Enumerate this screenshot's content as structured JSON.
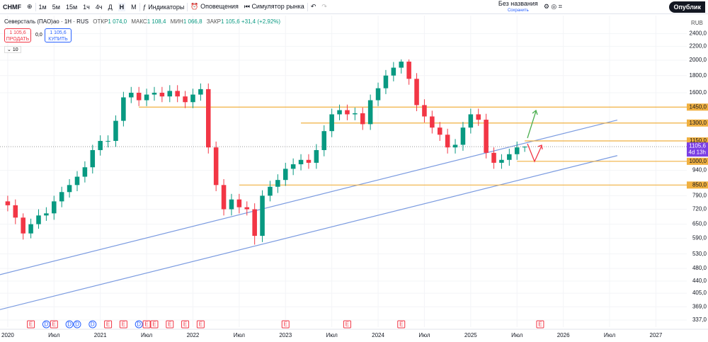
{
  "toolbar": {
    "symbol": "CHMF",
    "intervals": [
      "1м",
      "5м",
      "15м",
      "1ч",
      "4ч",
      "Д",
      "Н",
      "М"
    ],
    "active_interval": 6,
    "indicators": "Индикаторы",
    "alerts": "Оповещения",
    "replay": "Симулятор рынка",
    "layout_name": "Без названия",
    "layout_status": "Сохранить",
    "publish": "Опублик"
  },
  "legend": {
    "title": "Северсталь (ПАО)ао · 1Н · RUS",
    "open_label": "ОТКР",
    "open": "1 074,0",
    "high_label": "МАКС",
    "high": "1 108,4",
    "low_label": "МИН",
    "low": "1 066,8",
    "close_label": "ЗАКР",
    "close": "1 105,6",
    "change": "+31,4 (+2,92%)",
    "sell_price": "1 105,6",
    "sell": "ПРОДАТЬ",
    "spread": "0,0",
    "buy_price": "1 105,6",
    "buy": "КУПИТЬ",
    "indicator_count": "10"
  },
  "chart_data": {
    "type": "candlestick",
    "currency": "RUB",
    "log_scale": true,
    "x": [
      "2020-01",
      "2020-02",
      "2020-03",
      "2020-04",
      "2020-05",
      "2020-06",
      "2020-07",
      "2020-08",
      "2020-09",
      "2020-10",
      "2020-11",
      "2020-12",
      "2021-01",
      "2021-02",
      "2021-03",
      "2021-04",
      "2021-05",
      "2021-06",
      "2021-07",
      "2021-08",
      "2021-09",
      "2021-10",
      "2021-11",
      "2021-12",
      "2022-01",
      "2022-02",
      "2022-03",
      "2022-04",
      "2022-05",
      "2022-06",
      "2022-07",
      "2022-08",
      "2022-09",
      "2022-10",
      "2022-11",
      "2022-12",
      "2023-01",
      "2023-02",
      "2023-03",
      "2023-04",
      "2023-05",
      "2023-06",
      "2023-07",
      "2023-08",
      "2023-09",
      "2023-10",
      "2023-11",
      "2023-12",
      "2024-01",
      "2024-02",
      "2024-03",
      "2024-04",
      "2024-05",
      "2024-06",
      "2024-07",
      "2024-08",
      "2024-09",
      "2024-10",
      "2024-11",
      "2024-12",
      "2025-01",
      "2025-02",
      "2025-03",
      "2025-04",
      "2025-05",
      "2025-06",
      "2025-07",
      "2025-08"
    ],
    "open": [
      760,
      740,
      680,
      610,
      650,
      690,
      700,
      760,
      810,
      850,
      900,
      960,
      1080,
      1150,
      1150,
      1320,
      1550,
      1600,
      1520,
      1580,
      1600,
      1560,
      1620,
      1560,
      1500,
      1580,
      1640,
      1100,
      850,
      720,
      770,
      730,
      720,
      600,
      790,
      840,
      880,
      950,
      980,
      1010,
      990,
      1080,
      1230,
      1380,
      1420,
      1380,
      1390,
      1290,
      1520,
      1650,
      1800,
      1900,
      1980,
      1760,
      1470,
      1360,
      1260,
      1200,
      1100,
      1120,
      1260,
      1380,
      1330,
      1060,
      990,
      1010,
      1050,
      1100
    ],
    "high": [
      790,
      770,
      700,
      675,
      720,
      730,
      790,
      840,
      885,
      935,
      1000,
      1120,
      1195,
      1195,
      1370,
      1610,
      1665,
      1665,
      1645,
      1665,
      1665,
      1685,
      1685,
      1620,
      1645,
      1705,
      1705,
      1145,
      885,
      800,
      800,
      760,
      750,
      820,
      875,
      915,
      990,
      1020,
      1050,
      1050,
      1125,
      1280,
      1435,
      1475,
      1475,
      1445,
      1445,
      1580,
      1715,
      1870,
      1975,
      2010,
      2010,
      1830,
      1530,
      1415,
      1310,
      1250,
      1165,
      1310,
      1435,
      1435,
      1385,
      1100,
      1050,
      1090,
      1145,
      1108.4
    ],
    "low": [
      710,
      650,
      585,
      590,
      630,
      665,
      670,
      730,
      780,
      815,
      865,
      920,
      1040,
      1100,
      1105,
      1270,
      1490,
      1460,
      1460,
      1515,
      1500,
      1500,
      1500,
      1440,
      1440,
      1515,
      1055,
      815,
      690,
      690,
      700,
      690,
      565,
      575,
      760,
      805,
      845,
      910,
      940,
      950,
      950,
      1035,
      1180,
      1325,
      1325,
      1325,
      1240,
      1240,
      1460,
      1585,
      1730,
      1825,
      1690,
      1410,
      1305,
      1210,
      1150,
      1055,
      1055,
      1075,
      1210,
      1275,
      1020,
      950,
      950,
      970,
      1010,
      1066.8
    ],
    "close": [
      740,
      680,
      610,
      650,
      690,
      700,
      760,
      810,
      850,
      900,
      960,
      1080,
      1150,
      1150,
      1320,
      1550,
      1600,
      1520,
      1580,
      1600,
      1560,
      1620,
      1560,
      1500,
      1580,
      1640,
      1100,
      850,
      720,
      770,
      730,
      720,
      600,
      790,
      840,
      880,
      950,
      980,
      1010,
      990,
      1080,
      1230,
      1380,
      1420,
      1380,
      1390,
      1290,
      1520,
      1650,
      1800,
      1900,
      1980,
      1760,
      1470,
      1360,
      1260,
      1200,
      1100,
      1120,
      1260,
      1380,
      1330,
      1060,
      990,
      1010,
      1050,
      1100,
      1105.6
    ],
    "up_color": "#089981",
    "down_color": "#f23645",
    "ylim": [
      321,
      2715
    ],
    "yticks": [
      {
        "value": 2400,
        "label": "2400,0"
      },
      {
        "value": 2200,
        "label": "2200,0"
      },
      {
        "value": 2000,
        "label": "2000,0"
      },
      {
        "value": 1800,
        "label": "1800,0"
      },
      {
        "value": 1600,
        "label": "1600,0"
      },
      {
        "value": 940,
        "label": "940,0"
      },
      {
        "value": 790,
        "label": "790,0"
      },
      {
        "value": 720,
        "label": "720,0"
      },
      {
        "value": 650,
        "label": "650,0"
      },
      {
        "value": 590,
        "label": "590,0"
      },
      {
        "value": 530,
        "label": "530,0"
      },
      {
        "value": 480,
        "label": "480,0"
      },
      {
        "value": 440,
        "label": "440,0"
      },
      {
        "value": 405,
        "label": "405,0"
      },
      {
        "value": 369,
        "label": "369,0"
      },
      {
        "value": 337,
        "label": "337,0"
      }
    ],
    "xlim": [
      "2019-12",
      "2027-05"
    ],
    "xticks": [
      {
        "value": "2020-01",
        "label": "2020"
      },
      {
        "value": "2020-07",
        "label": "Июл"
      },
      {
        "value": "2021-01",
        "label": "2021"
      },
      {
        "value": "2021-07",
        "label": "Июл"
      },
      {
        "value": "2022-01",
        "label": "2022"
      },
      {
        "value": "2022-07",
        "label": "Июл"
      },
      {
        "value": "2023-01",
        "label": "2023"
      },
      {
        "value": "2023-07",
        "label": "Июл"
      },
      {
        "value": "2024-01",
        "label": "2024"
      },
      {
        "value": "2024-07",
        "label": "Июл"
      },
      {
        "value": "2025-01",
        "label": "2025"
      },
      {
        "value": "2025-07",
        "label": "Июл"
      },
      {
        "value": "2026-01",
        "label": "2026"
      },
      {
        "value": "2026-07",
        "label": "Июл"
      },
      {
        "value": "2027-01",
        "label": "2027"
      }
    ],
    "levels": [
      {
        "value": 1450,
        "label": "1450,0",
        "from": "2021-06"
      },
      {
        "value": 1300,
        "label": "1300,0",
        "from": "2023-03"
      },
      {
        "value": 1150,
        "label": "1150,0",
        "from": "2025-08"
      },
      {
        "value": 1000,
        "label": "1000,0",
        "from": "2025-07"
      },
      {
        "value": 850,
        "label": "850,0",
        "from": "2022-07"
      }
    ],
    "level_color": "#f0b040",
    "trendlines": [
      {
        "from": {
          "date": "2019-12",
          "price": 460
        },
        "to": {
          "date": "2026-08",
          "price": 1327
        }
      },
      {
        "from": {
          "date": "2019-12",
          "price": 362
        },
        "to": {
          "date": "2026-08",
          "price": 1040
        }
      }
    ],
    "trend_color": "#7b9be0",
    "last": {
      "value": 1105.6,
      "label": "1105,6",
      "countdown": "4d 13h",
      "color": "#7b3fe4"
    },
    "events": [
      {
        "date": "2020-04",
        "label": "E"
      },
      {
        "date": "2020-06",
        "label": "D"
      },
      {
        "date": "2020-07",
        "label": "E"
      },
      {
        "date": "2020-09",
        "label": "D"
      },
      {
        "date": "2020-10",
        "label": "D"
      },
      {
        "date": "2020-12",
        "label": "D"
      },
      {
        "date": "2021-02",
        "label": "E"
      },
      {
        "date": "2021-04",
        "label": "E"
      },
      {
        "date": "2021-06",
        "label": "D"
      },
      {
        "date": "2021-07",
        "label": "E"
      },
      {
        "date": "2021-08",
        "label": "E"
      },
      {
        "date": "2021-10",
        "label": "E"
      },
      {
        "date": "2021-12",
        "label": "E"
      },
      {
        "date": "2022-02",
        "label": "E"
      },
      {
        "date": "2023-01",
        "label": "E"
      },
      {
        "date": "2023-09",
        "label": "E"
      },
      {
        "date": "2024-04",
        "label": "E"
      },
      {
        "date": "2025-10",
        "label": "E"
      }
    ]
  }
}
